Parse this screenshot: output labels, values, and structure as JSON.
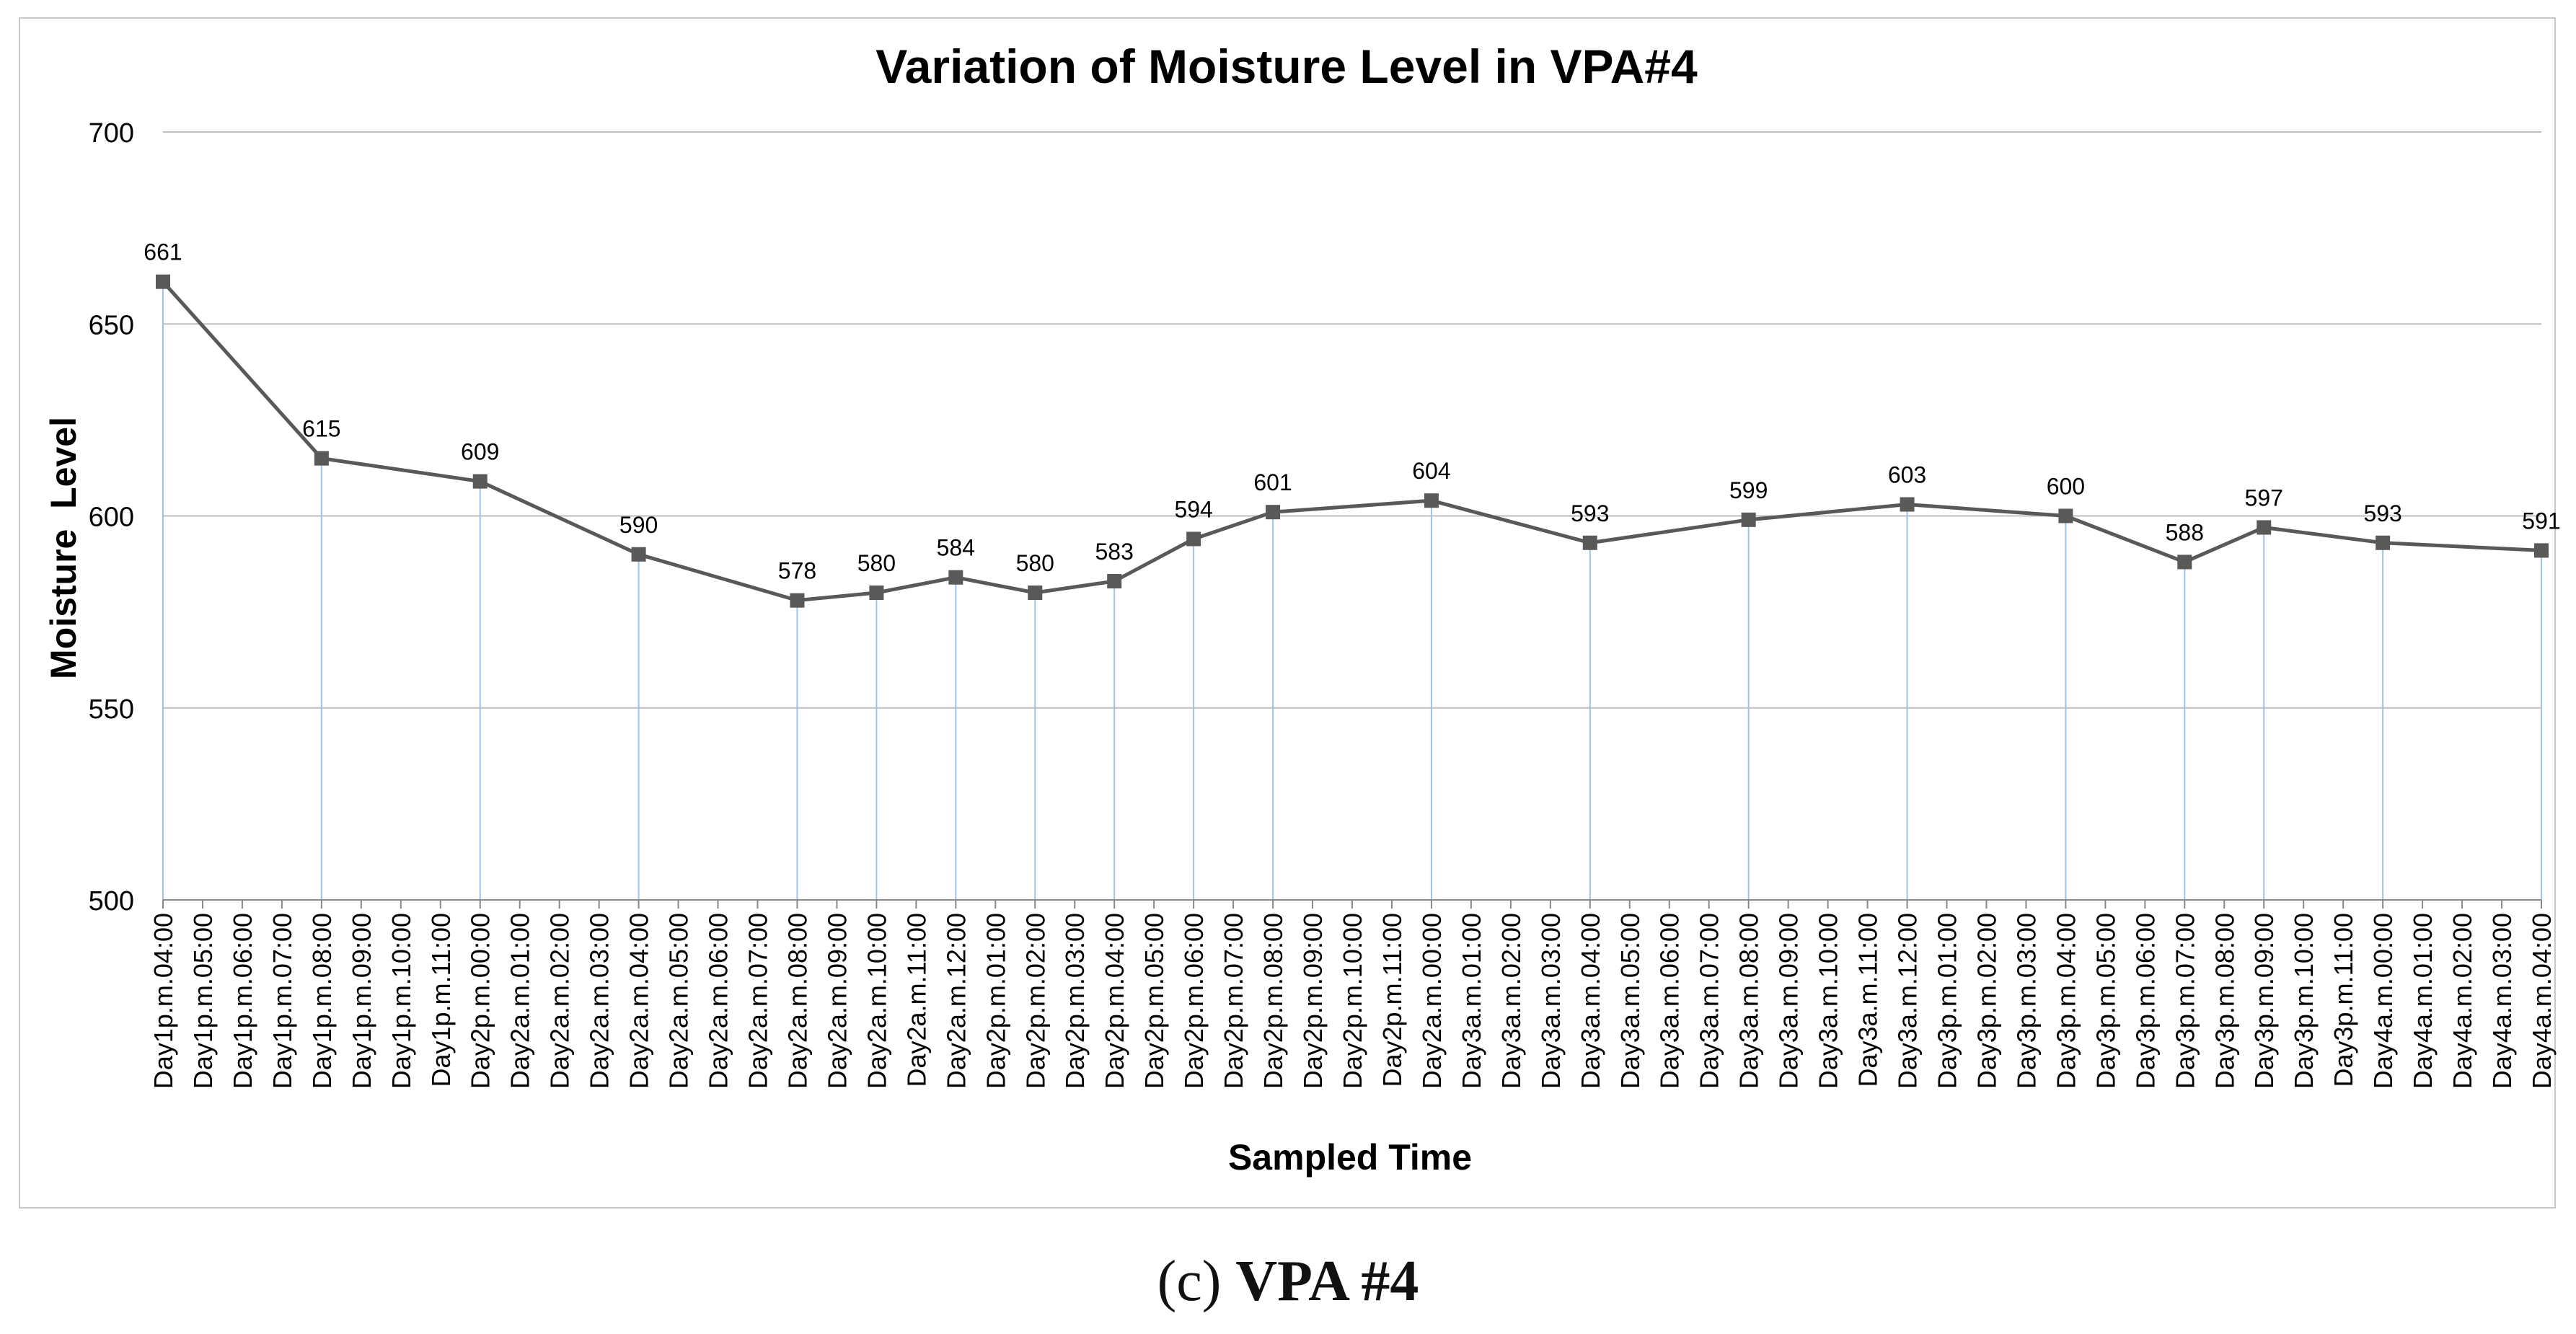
{
  "chart_data": {
    "type": "line",
    "title": "Variation of Moisture Level in VPA#4",
    "xlabel": "Sampled Time",
    "ylabel": "Moisture  Level",
    "ylim": [
      500,
      700
    ],
    "yticks": [
      500,
      550,
      600,
      650,
      700
    ],
    "grid": true,
    "categories": [
      "Day1p.m.04:00",
      "Day1p.m.05:00",
      "Day1p.m.06:00",
      "Day1p.m.07:00",
      "Day1p.m.08:00",
      "Day1p.m.09:00",
      "Day1p.m.10:00",
      "Day1p.m.11:00",
      "Day2p.m.00:00",
      "Day2a.m.01:00",
      "Day2a.m.02:00",
      "Day2a.m.03:00",
      "Day2a.m.04:00",
      "Day2a.m.05:00",
      "Day2a.m.06:00",
      "Day2a.m.07:00",
      "Day2a.m.08:00",
      "Day2a.m.09:00",
      "Day2a.m.10:00",
      "Day2a.m.11:00",
      "Day2a.m.12:00",
      "Day2p.m.01:00",
      "Day2p.m.02:00",
      "Day2p.m.03:00",
      "Day2p.m.04:00",
      "Day2p.m.05:00",
      "Day2p.m.06:00",
      "Day2p.m.07:00",
      "Day2p.m.08:00",
      "Day2p.m.09:00",
      "Day2p.m.10:00",
      "Day2p.m.11:00",
      "Day2a.m.00:00",
      "Day3a.m.01:00",
      "Day3a.m.02:00",
      "Day3a.m.03:00",
      "Day3a.m.04:00",
      "Day3a.m.05:00",
      "Day3a.m.06:00",
      "Day3a.m.07:00",
      "Day3a.m.08:00",
      "Day3a.m.09:00",
      "Day3a.m.10:00",
      "Day3a.m.11:00",
      "Day3a.m.12:00",
      "Day3p.m.01:00",
      "Day3p.m.02:00",
      "Day3p.m.03:00",
      "Day3p.m.04:00",
      "Day3p.m.05:00",
      "Day3p.m.06:00",
      "Day3p.m.07:00",
      "Day3p.m.08:00",
      "Day3p.m.09:00",
      "Day3p.m.10:00",
      "Day3p.m.11:00",
      "Day4a.m.00:00",
      "Day4a.m.01:00",
      "Day4a.m.02:00",
      "Day4a.m.03:00",
      "Day4a.m.04:00"
    ],
    "points": [
      {
        "index": 0,
        "value": 661
      },
      {
        "index": 4,
        "value": 615
      },
      {
        "index": 8,
        "value": 609
      },
      {
        "index": 12,
        "value": 590
      },
      {
        "index": 16,
        "value": 578
      },
      {
        "index": 18,
        "value": 580
      },
      {
        "index": 20,
        "value": 584
      },
      {
        "index": 22,
        "value": 580
      },
      {
        "index": 24,
        "value": 583
      },
      {
        "index": 26,
        "value": 594
      },
      {
        "index": 28,
        "value": 601
      },
      {
        "index": 32,
        "value": 604
      },
      {
        "index": 36,
        "value": 593
      },
      {
        "index": 40,
        "value": 599
      },
      {
        "index": 44,
        "value": 603
      },
      {
        "index": 48,
        "value": 600
      },
      {
        "index": 51,
        "value": 588
      },
      {
        "index": 53,
        "value": 597
      },
      {
        "index": 56,
        "value": 593
      },
      {
        "index": 60,
        "value": 591
      }
    ],
    "colors": {
      "line": "#595959",
      "marker": "#595959",
      "drop_line": "#9dc3e6",
      "grid": "#bfbfbf",
      "axis": "#888888"
    }
  },
  "caption": {
    "label": "(c)",
    "text": "VPA #4"
  }
}
